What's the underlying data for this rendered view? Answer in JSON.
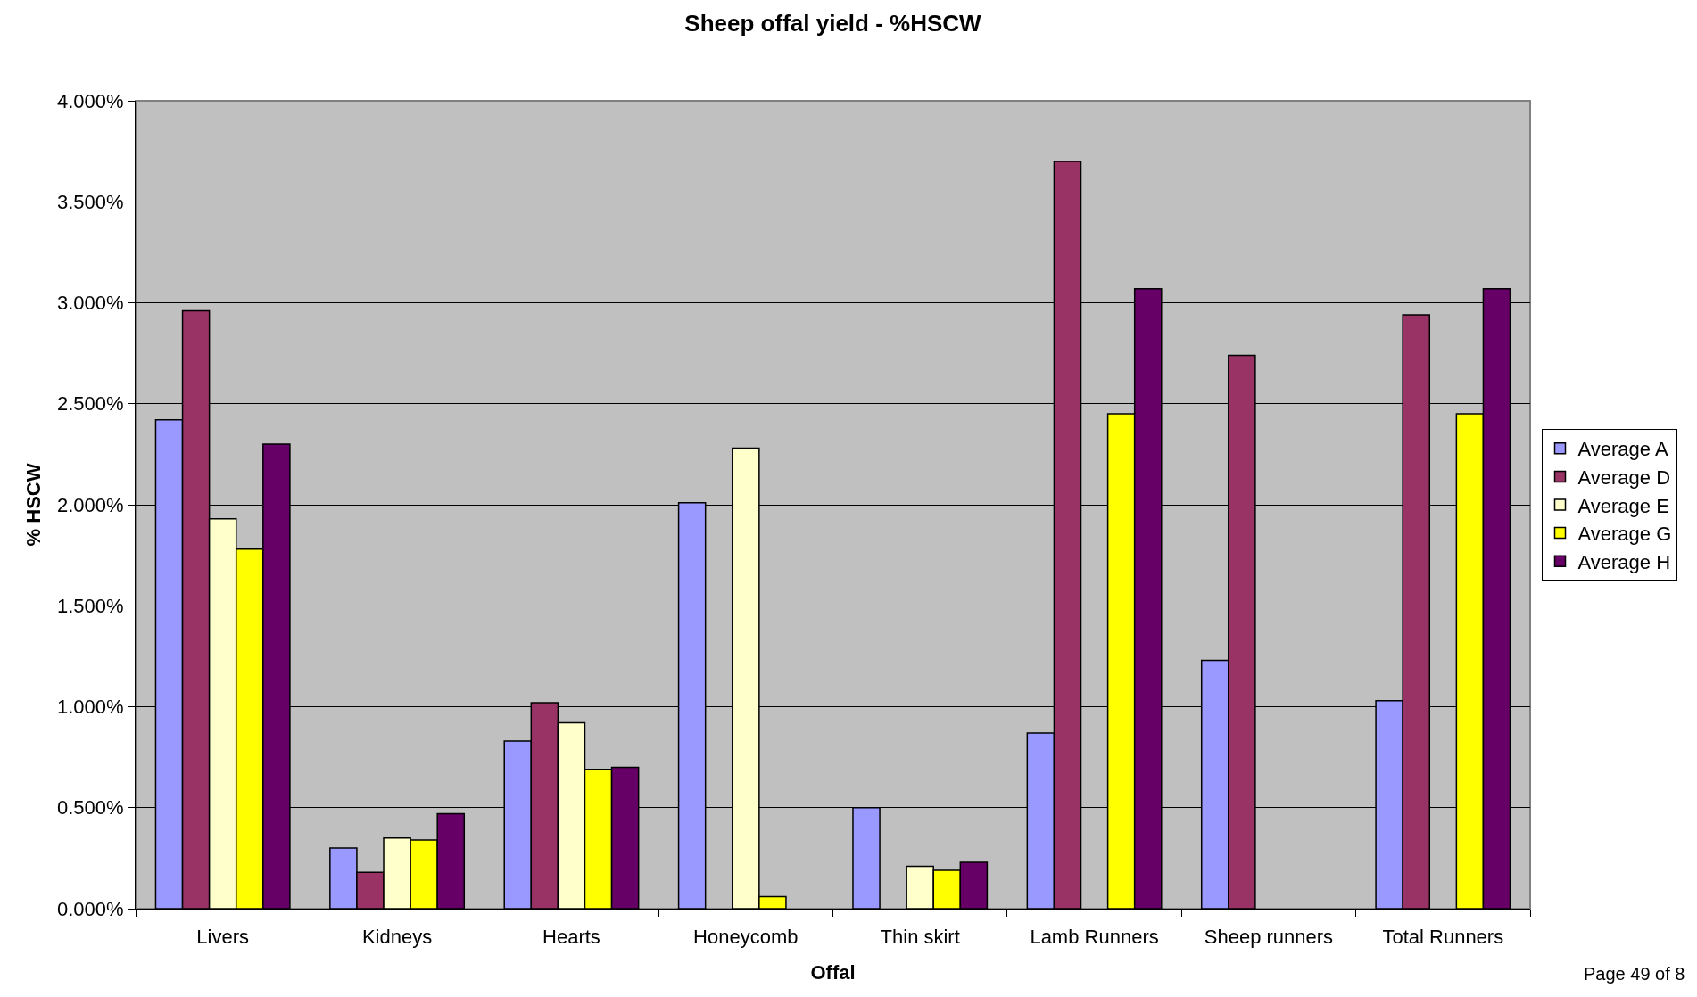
{
  "chart_data": {
    "type": "bar",
    "title": "Sheep offal yield - %HSCW",
    "xlabel": "Offal",
    "ylabel": "% HSCW",
    "categories": [
      "Livers",
      "Kidneys",
      "Hearts",
      "Honeycomb",
      "Thin skirt",
      "Lamb Runners",
      "Sheep runners",
      "Total Runners"
    ],
    "series": [
      {
        "name": "Average A",
        "color": "#9999ff",
        "values": [
          2.42,
          0.3,
          0.83,
          2.01,
          0.5,
          0.87,
          1.23,
          1.03
        ]
      },
      {
        "name": "Average D",
        "color": "#993366",
        "values": [
          2.96,
          0.18,
          1.02,
          null,
          null,
          3.7,
          2.74,
          2.94
        ]
      },
      {
        "name": "Average E",
        "color": "#ffffcc",
        "values": [
          1.93,
          0.35,
          0.92,
          2.28,
          0.21,
          null,
          null,
          null
        ]
      },
      {
        "name": "Average G",
        "color": "#ffff00",
        "values": [
          1.78,
          0.34,
          0.69,
          0.06,
          0.19,
          2.45,
          null,
          2.45
        ]
      },
      {
        "name": "Average H",
        "color": "#660066",
        "values": [
          2.3,
          0.47,
          0.7,
          null,
          0.23,
          3.07,
          null,
          3.07
        ]
      }
    ],
    "ylim": [
      0,
      4
    ],
    "yticks": [
      {
        "value": 0,
        "label": "0.000%"
      },
      {
        "value": 0.5,
        "label": "0.500%"
      },
      {
        "value": 1,
        "label": "1.000%"
      },
      {
        "value": 1.5,
        "label": "1.500%"
      },
      {
        "value": 2,
        "label": "2.000%"
      },
      {
        "value": 2.5,
        "label": "2.500%"
      },
      {
        "value": 3,
        "label": "3.000%"
      },
      {
        "value": 3.5,
        "label": "3.500%"
      },
      {
        "value": 4,
        "label": "4.000%"
      }
    ],
    "grid": "y",
    "legend": "right",
    "annotations": [
      "Page 49 of 8"
    ]
  }
}
